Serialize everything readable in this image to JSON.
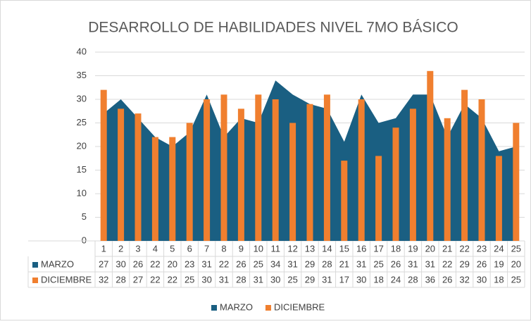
{
  "chart_data": {
    "type": "combo",
    "title": "DESARROLLO DE HABILIDADES NIVEL 7MO BÁSICO",
    "categories": [
      "1",
      "2",
      "3",
      "4",
      "5",
      "6",
      "7",
      "8",
      "9",
      "10",
      "11",
      "12",
      "13",
      "14",
      "15",
      "16",
      "17",
      "18",
      "19",
      "20",
      "21",
      "22",
      "23",
      "24",
      "25"
    ],
    "series": [
      {
        "name": "MARZO",
        "type": "area",
        "color": "#1a5f82",
        "values": [
          27,
          30,
          26,
          22,
          20,
          23,
          31,
          22,
          26,
          25,
          34,
          31,
          29,
          28,
          21,
          31,
          25,
          26,
          31,
          31,
          22,
          29,
          26,
          19,
          20
        ]
      },
      {
        "name": "DICIEMBRE",
        "type": "bar",
        "color": "#f07f2f",
        "values": [
          32,
          28,
          27,
          22,
          22,
          25,
          30,
          31,
          28,
          31,
          30,
          25,
          29,
          31,
          17,
          30,
          18,
          24,
          28,
          36,
          26,
          32,
          30,
          18,
          25
        ]
      }
    ],
    "ylim": [
      0,
      40
    ],
    "yticks": [
      0,
      5,
      10,
      15,
      20,
      25,
      30,
      35,
      40
    ],
    "grid": true,
    "legend": "bottom",
    "data_table": true
  }
}
